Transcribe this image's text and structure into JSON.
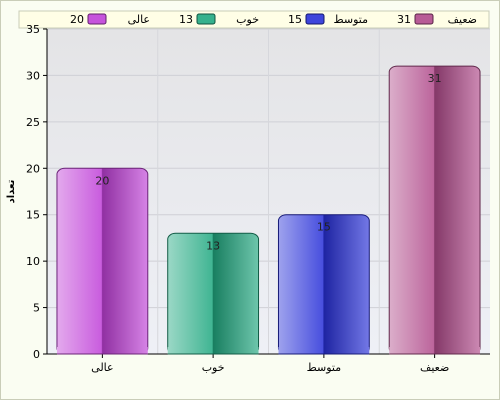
{
  "chart_data": {
    "type": "bar",
    "categories": [
      "عالی",
      "خوب",
      "متوسط",
      "ضعیف"
    ],
    "values": [
      20,
      13,
      15,
      31
    ],
    "ylabel": "تعداد",
    "xlabel": "",
    "ylim": [
      0,
      35
    ],
    "yticks": [
      0,
      5,
      10,
      15,
      20,
      25,
      30,
      35
    ],
    "grid": true,
    "data_labels": true,
    "legend": {
      "placement": "top",
      "entries": [
        {
          "label": "ضعیف",
          "value": 31
        },
        {
          "label": "متوسط",
          "value": 15
        },
        {
          "label": "خوب",
          "value": 13
        },
        {
          "label": "عالی",
          "value": 20
        }
      ]
    },
    "colors": [
      "#c040d8",
      "#20a880",
      "#2830d8",
      "#b04a8a"
    ]
  }
}
